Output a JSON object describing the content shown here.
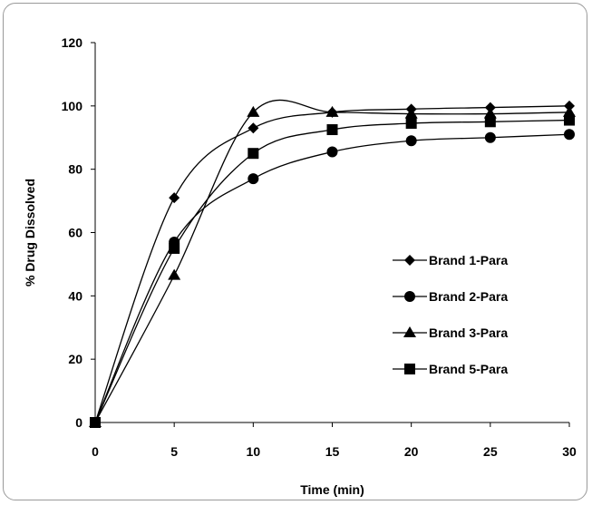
{
  "chart_data": {
    "type": "line",
    "title": "",
    "xlabel": "Time (min)",
    "ylabel": "% Drug Dissolved",
    "x": [
      0,
      5,
      10,
      15,
      20,
      25,
      30
    ],
    "xlim": [
      0,
      30
    ],
    "ylim": [
      0,
      120
    ],
    "xticks": [
      0,
      5,
      10,
      15,
      20,
      25,
      30
    ],
    "yticks": [
      0,
      20,
      40,
      60,
      80,
      100,
      120
    ],
    "grid": false,
    "legend_position": "right",
    "smoothed": true,
    "series": [
      {
        "name": "Brand 1-Para",
        "marker": "diamond",
        "values": [
          0,
          71,
          93,
          98,
          99,
          99.5,
          100
        ]
      },
      {
        "name": "Brand 2-Para",
        "marker": "circle",
        "values": [
          0,
          57,
          77,
          85.5,
          89,
          90,
          91
        ]
      },
      {
        "name": "Brand 3-Para",
        "marker": "triangle",
        "values": [
          0,
          46.5,
          98,
          98,
          97.5,
          97.5,
          98
        ]
      },
      {
        "name": "Brand 5-Para",
        "marker": "square",
        "values": [
          0,
          55,
          85,
          92.5,
          94.5,
          95,
          95.5
        ]
      }
    ],
    "line_color": "#000000"
  }
}
